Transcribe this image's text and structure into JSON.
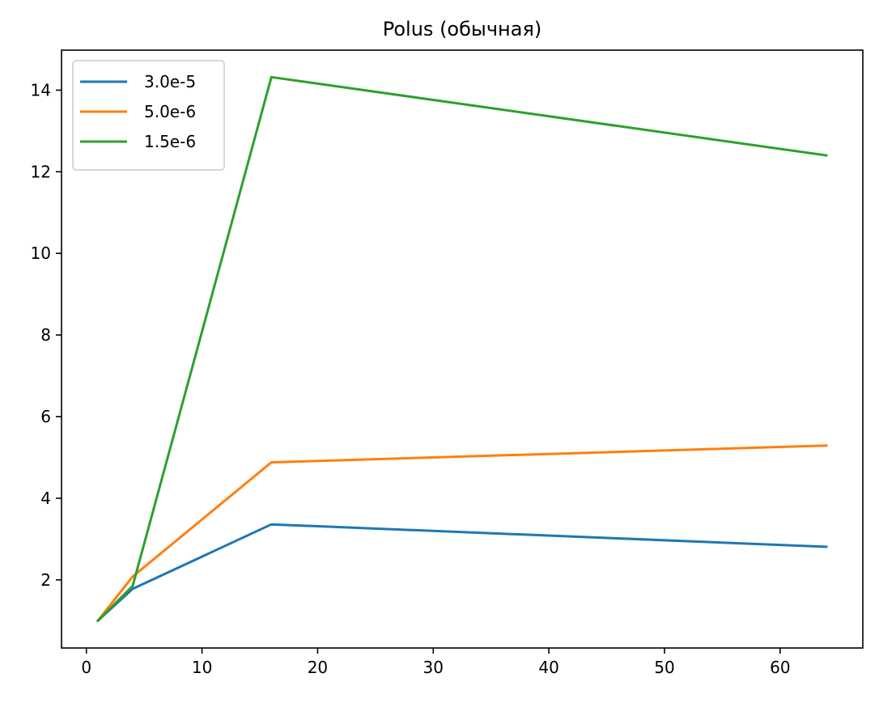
{
  "chart_data": {
    "type": "line",
    "title": "Polus (обычная)",
    "xlabel": "",
    "ylabel": "",
    "x": [
      1,
      4,
      16,
      64
    ],
    "xlim": [
      -2.15,
      67.15
    ],
    "ylim": [
      0.33,
      14.98
    ],
    "xticks": [
      0,
      10,
      20,
      30,
      40,
      50,
      60
    ],
    "yticks": [
      2,
      4,
      6,
      8,
      10,
      12,
      14
    ],
    "grid": false,
    "legend_position": "top-left",
    "series": [
      {
        "name": "3.0e-5",
        "color": "#1f77b4",
        "values": [
          1.0,
          1.78,
          3.36,
          2.81
        ]
      },
      {
        "name": "5.0e-6",
        "color": "#ff7f0e",
        "values": [
          1.0,
          2.08,
          4.88,
          5.29
        ]
      },
      {
        "name": "1.5e-6",
        "color": "#2ca02c",
        "values": [
          1.0,
          1.85,
          14.32,
          12.4
        ]
      }
    ]
  }
}
